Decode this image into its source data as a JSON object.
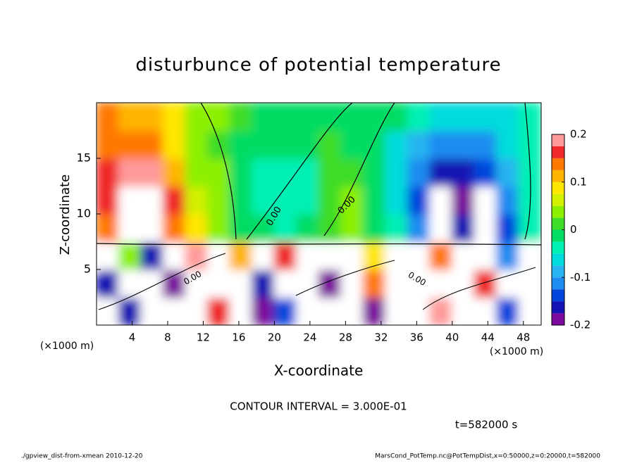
{
  "chart_data": {
    "type": "contour",
    "title": "disturbunce of potential temperature",
    "x_label": "X-coordinate",
    "y_label": "Z-coordinate",
    "x_unit_label": "(×1000 m)",
    "xlim": [
      0,
      50
    ],
    "xticks": [
      4,
      8,
      12,
      16,
      20,
      24,
      28,
      32,
      36,
      40,
      44,
      48
    ],
    "ylim": [
      0,
      20
    ],
    "yticks": [
      5,
      10,
      15
    ],
    "x": [
      1.25,
      3.75,
      6.25,
      8.75,
      11.25,
      13.75,
      16.25,
      18.75,
      21.25,
      23.75,
      26.25,
      28.75,
      31.25,
      33.75,
      36.25,
      38.75,
      41.25,
      43.75,
      46.25,
      48.75
    ],
    "z": [
      1.25,
      3.75,
      6.25,
      8.75,
      11.25,
      13.75,
      16.25,
      18.75
    ],
    "values": [
      [
        0.3,
        -0.17,
        0.3,
        0.3,
        0.3,
        0.16,
        0.3,
        -0.19,
        -0.14,
        0.3,
        0.3,
        0.3,
        -0.18,
        0.3,
        0.3,
        0.18,
        0.3,
        0.3,
        -0.14,
        0.3
      ],
      [
        -0.16,
        0.3,
        0.3,
        -0.18,
        0.3,
        0.3,
        0.3,
        -0.15,
        0.3,
        0.3,
        -0.18,
        0.3,
        0.15,
        0.3,
        0.3,
        0.3,
        0.3,
        0.17,
        0.3,
        0.3
      ],
      [
        0.3,
        0.05,
        -0.15,
        0.3,
        0.18,
        0.3,
        0.12,
        0.3,
        0.16,
        -0.3,
        0.3,
        0.3,
        0.08,
        0.3,
        0.3,
        0.14,
        0.3,
        0.3,
        -0.12,
        0.3
      ],
      [
        0.15,
        0.23,
        0.24,
        0.14,
        0.08,
        0.05,
        0.0,
        -0.02,
        -0.03,
        -0.02,
        0.02,
        0.03,
        0.0,
        -0.04,
        -0.12,
        -0.25,
        -0.16,
        -0.23,
        -0.13,
        -0.03
      ],
      [
        0.17,
        0.21,
        0.22,
        0.16,
        0.07,
        0.04,
        0.0,
        -0.03,
        -0.04,
        -0.03,
        0.02,
        0.03,
        0.0,
        -0.05,
        -0.13,
        -0.21,
        -0.19,
        -0.22,
        -0.12,
        -0.04
      ],
      [
        0.16,
        0.18,
        0.19,
        0.12,
        0.05,
        0.03,
        -0.01,
        -0.03,
        -0.04,
        -0.03,
        0.01,
        0.02,
        -0.01,
        -0.06,
        -0.12,
        -0.15,
        -0.17,
        -0.14,
        -0.09,
        -0.04
      ],
      [
        0.15,
        0.14,
        0.14,
        0.1,
        0.05,
        0.02,
        -0.01,
        -0.02,
        -0.02,
        -0.01,
        0.01,
        0.0,
        -0.02,
        -0.05,
        -0.09,
        -0.11,
        -0.12,
        -0.1,
        -0.07,
        -0.03
      ],
      [
        0.13,
        0.12,
        0.11,
        0.08,
        0.05,
        0.03,
        0.01,
        -0.01,
        -0.02,
        -0.01,
        0.0,
        0.0,
        -0.01,
        -0.02,
        -0.04,
        -0.05,
        -0.06,
        -0.06,
        -0.05,
        -0.03
      ]
    ],
    "colorbar": {
      "levels": [
        -0.2,
        -0.175,
        -0.15,
        -0.125,
        -0.1,
        -0.075,
        -0.05,
        -0.025,
        0,
        0.025,
        0.05,
        0.075,
        0.1,
        0.125,
        0.15,
        0.175,
        0.2
      ],
      "colors": [
        "#7a0a9c",
        "#1414b4",
        "#0046dc",
        "#1e8cf0",
        "#28b4f0",
        "#00dcdc",
        "#00f0b4",
        "#00dc64",
        "#3cdc28",
        "#8cf000",
        "#d2f000",
        "#ffe600",
        "#ffb400",
        "#ff7800",
        "#f02828",
        "#ff9a9a"
      ],
      "ylim": [
        -0.2,
        0.2
      ],
      "ticks": [
        -0.2,
        -0.1,
        0,
        0.1,
        0.2
      ]
    },
    "contour_labels": [
      "0.00",
      "0.00",
      "0.00",
      "0.00"
    ],
    "contour_interval_text": "CONTOUR INTERVAL = 3.000E-01",
    "time_text": "t=582000 s",
    "footer_left": "./gpview_dist-from-xmean  2010-12-20",
    "footer_right": "MarsCond_PotTemp.nc@PotTempDist,x=0:50000,z=0:20000,t=582000"
  }
}
